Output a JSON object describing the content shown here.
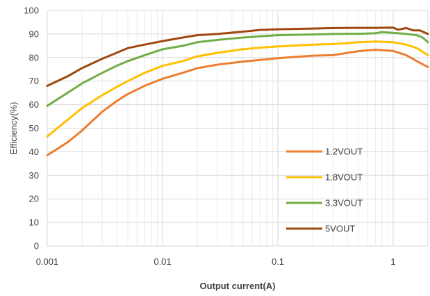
{
  "chart_data": {
    "type": "line",
    "title": "",
    "xlabel": "Output current(A)",
    "ylabel": "Efficiency(%)",
    "xscale": "log",
    "xlim": [
      0.001,
      2
    ],
    "ylim": [
      0,
      100
    ],
    "grid": "on",
    "legend_position": "lower-right",
    "x_tick_labels": [
      "0.001",
      "0.01",
      "0.1",
      "1"
    ],
    "x_ticks": [
      0.001,
      0.01,
      0.1,
      1
    ],
    "y_tick_labels": [
      "0",
      "10",
      "20",
      "30",
      "40",
      "50",
      "60",
      "70",
      "80",
      "90",
      "100"
    ],
    "y_ticks": [
      0,
      10,
      20,
      30,
      40,
      50,
      60,
      70,
      80,
      90,
      100
    ],
    "series": [
      {
        "name": "1.2VOUT",
        "color": "#ED7D31",
        "points": [
          [
            0.001,
            38.5
          ],
          [
            0.0015,
            44
          ],
          [
            0.002,
            49
          ],
          [
            0.003,
            57
          ],
          [
            0.004,
            61.5
          ],
          [
            0.005,
            64.5
          ],
          [
            0.007,
            68
          ],
          [
            0.01,
            71
          ],
          [
            0.015,
            73.5
          ],
          [
            0.02,
            75.5
          ],
          [
            0.03,
            77
          ],
          [
            0.05,
            78.3
          ],
          [
            0.07,
            79
          ],
          [
            0.1,
            79.7
          ],
          [
            0.2,
            80.8
          ],
          [
            0.3,
            81
          ],
          [
            0.5,
            82.7
          ],
          [
            0.7,
            83.3
          ],
          [
            1.0,
            82.8
          ],
          [
            1.3,
            81
          ],
          [
            1.6,
            78.5
          ],
          [
            2.0,
            76
          ]
        ]
      },
      {
        "name": "1.8VOUT",
        "color": "#FFC000",
        "points": [
          [
            0.001,
            46.5
          ],
          [
            0.0015,
            53.5
          ],
          [
            0.002,
            58.5
          ],
          [
            0.003,
            64
          ],
          [
            0.004,
            67.5
          ],
          [
            0.005,
            70
          ],
          [
            0.007,
            73.5
          ],
          [
            0.01,
            76.5
          ],
          [
            0.015,
            78.5
          ],
          [
            0.02,
            80.5
          ],
          [
            0.03,
            82
          ],
          [
            0.05,
            83.5
          ],
          [
            0.07,
            84.2
          ],
          [
            0.1,
            84.7
          ],
          [
            0.2,
            85.5
          ],
          [
            0.3,
            85.7
          ],
          [
            0.5,
            86.5
          ],
          [
            0.7,
            86.8
          ],
          [
            1.0,
            86.5
          ],
          [
            1.3,
            85.5
          ],
          [
            1.6,
            84
          ],
          [
            2.0,
            81
          ]
        ]
      },
      {
        "name": "3.3VOUT",
        "color": "#70AD47",
        "points": [
          [
            0.001,
            59.5
          ],
          [
            0.0015,
            65
          ],
          [
            0.002,
            69
          ],
          [
            0.003,
            73.5
          ],
          [
            0.004,
            76.5
          ],
          [
            0.005,
            78.5
          ],
          [
            0.007,
            81
          ],
          [
            0.01,
            83.5
          ],
          [
            0.015,
            85
          ],
          [
            0.02,
            86.5
          ],
          [
            0.03,
            87.5
          ],
          [
            0.05,
            88.5
          ],
          [
            0.07,
            89
          ],
          [
            0.1,
            89.5
          ],
          [
            0.2,
            89.8
          ],
          [
            0.3,
            90
          ],
          [
            0.5,
            90.1
          ],
          [
            0.7,
            90.3
          ],
          [
            0.8,
            90.8
          ],
          [
            1.0,
            90.5
          ],
          [
            1.3,
            90
          ],
          [
            1.6,
            89.5
          ],
          [
            1.8,
            88.5
          ],
          [
            2.0,
            86.5
          ]
        ]
      },
      {
        "name": "5VOUT",
        "color": "#9E480E",
        "points": [
          [
            0.001,
            68
          ],
          [
            0.0015,
            72
          ],
          [
            0.002,
            75.5
          ],
          [
            0.003,
            79.5
          ],
          [
            0.004,
            82
          ],
          [
            0.005,
            84
          ],
          [
            0.007,
            85.5
          ],
          [
            0.01,
            87
          ],
          [
            0.015,
            88.5
          ],
          [
            0.02,
            89.5
          ],
          [
            0.03,
            90
          ],
          [
            0.05,
            91
          ],
          [
            0.07,
            91.7
          ],
          [
            0.1,
            92
          ],
          [
            0.2,
            92.3
          ],
          [
            0.3,
            92.5
          ],
          [
            0.5,
            92.6
          ],
          [
            0.7,
            92.6
          ],
          [
            1.0,
            92.7
          ],
          [
            1.1,
            91.8
          ],
          [
            1.3,
            92.5
          ],
          [
            1.5,
            91.5
          ],
          [
            1.7,
            91.5
          ],
          [
            2.0,
            90
          ]
        ]
      }
    ]
  }
}
